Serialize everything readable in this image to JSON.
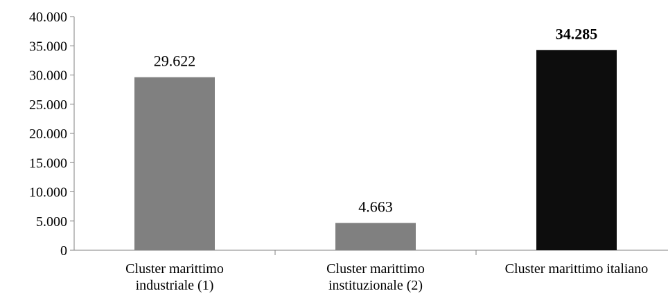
{
  "chart_data": {
    "type": "bar",
    "title": "",
    "xlabel": "",
    "ylabel": "",
    "ylim": [
      0,
      40000
    ],
    "yticks": [
      {
        "value": 0,
        "label": "0"
      },
      {
        "value": 5000,
        "label": "5.000"
      },
      {
        "value": 10000,
        "label": "10.000"
      },
      {
        "value": 15000,
        "label": "15.000"
      },
      {
        "value": 20000,
        "label": "20.000"
      },
      {
        "value": 25000,
        "label": "25.000"
      },
      {
        "value": 30000,
        "label": "30.000"
      },
      {
        "value": 35000,
        "label": "35.000"
      },
      {
        "value": 40000,
        "label": "40.000"
      }
    ],
    "grid": false,
    "legend": "none",
    "categories": [
      [
        "Cluster marittimo",
        "industriale (1)"
      ],
      [
        "Cluster marittimo",
        "instituzionale (2)"
      ],
      [
        "Cluster marittimo italiano"
      ]
    ],
    "values": [
      29622,
      4663,
      34285
    ],
    "data_labels": [
      "29.622",
      "4.663",
      "34.285"
    ],
    "bold_labels": [
      false,
      false,
      true
    ],
    "colors": [
      "#808080",
      "#808080",
      "#0d0d0d"
    ]
  }
}
